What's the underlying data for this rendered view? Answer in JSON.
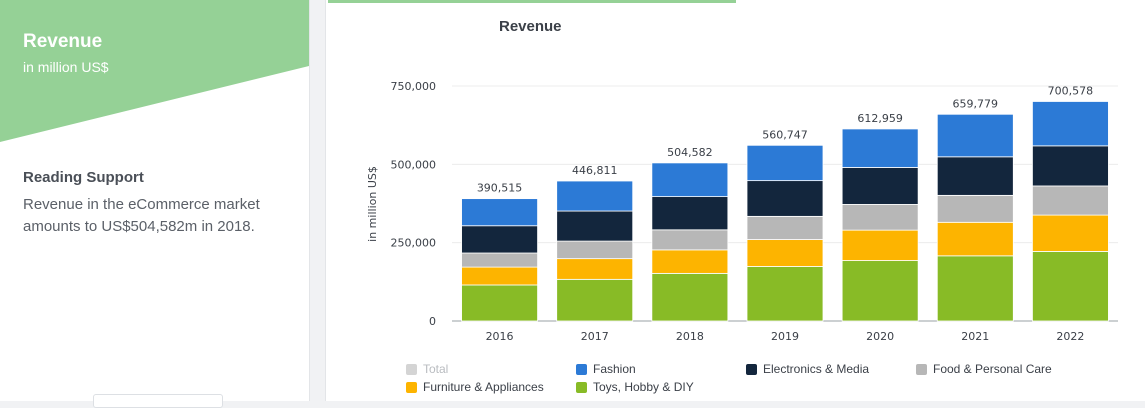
{
  "left": {
    "title": "Revenue",
    "subtitle": "in million US$",
    "reading_heading": "Reading Support",
    "reading_text": "Revenue in the eCommerce market amounts to US$504,582m in 2018."
  },
  "colors": {
    "banner_green": "#95d196",
    "total": "#d4d4d4",
    "fashion": "#2c7ad6",
    "electronics": "#13263d",
    "food": "#b7b7b7",
    "furniture": "#fdb400",
    "toys": "#88bb26"
  },
  "chart_data": {
    "type": "bar",
    "stacked": true,
    "title": "Revenue",
    "ylabel": "in million US$",
    "xlabel": "",
    "ylim": [
      0,
      750000
    ],
    "yticks": [
      "0",
      "250,000",
      "500,000",
      "750,000"
    ],
    "ytick_values": [
      0,
      250000,
      500000,
      750000
    ],
    "categories": [
      "2016",
      "2017",
      "2018",
      "2019",
      "2020",
      "2021",
      "2022"
    ],
    "totals": [
      390515,
      446811,
      504582,
      560747,
      612959,
      659779,
      700578
    ],
    "total_labels": [
      "390,515",
      "446,811",
      "504,582",
      "560,747",
      "612,959",
      "659,779",
      "700,578"
    ],
    "series": [
      {
        "name": "Toys, Hobby & DIY",
        "key": "toys",
        "values": [
          115000,
          133000,
          152000,
          174000,
          193000,
          208000,
          222000
        ]
      },
      {
        "name": "Furniture & Appliances",
        "key": "furniture",
        "values": [
          57000,
          66000,
          75000,
          86000,
          97000,
          107000,
          116000
        ]
      },
      {
        "name": "Food & Personal Care",
        "key": "food",
        "values": [
          45000,
          56000,
          64000,
          74000,
          82000,
          86000,
          93000
        ]
      },
      {
        "name": "Electronics & Media",
        "key": "electronics",
        "values": [
          87000,
          96000,
          106000,
          114000,
          118000,
          123000,
          128000
        ]
      },
      {
        "name": "Fashion",
        "key": "fashion",
        "values": [
          86515,
          95811,
          107582,
          112747,
          122959,
          135779,
          141578
        ]
      }
    ],
    "legend": [
      {
        "name": "Total",
        "key": "total",
        "muted": true
      },
      {
        "name": "Fashion",
        "key": "fashion"
      },
      {
        "name": "Electronics & Media",
        "key": "electronics"
      },
      {
        "name": "Food & Personal Care",
        "key": "food"
      },
      {
        "name": "Furniture & Appliances",
        "key": "furniture"
      },
      {
        "name": "Toys, Hobby & DIY",
        "key": "toys"
      }
    ],
    "legend_position": "bottom",
    "grid": true
  }
}
